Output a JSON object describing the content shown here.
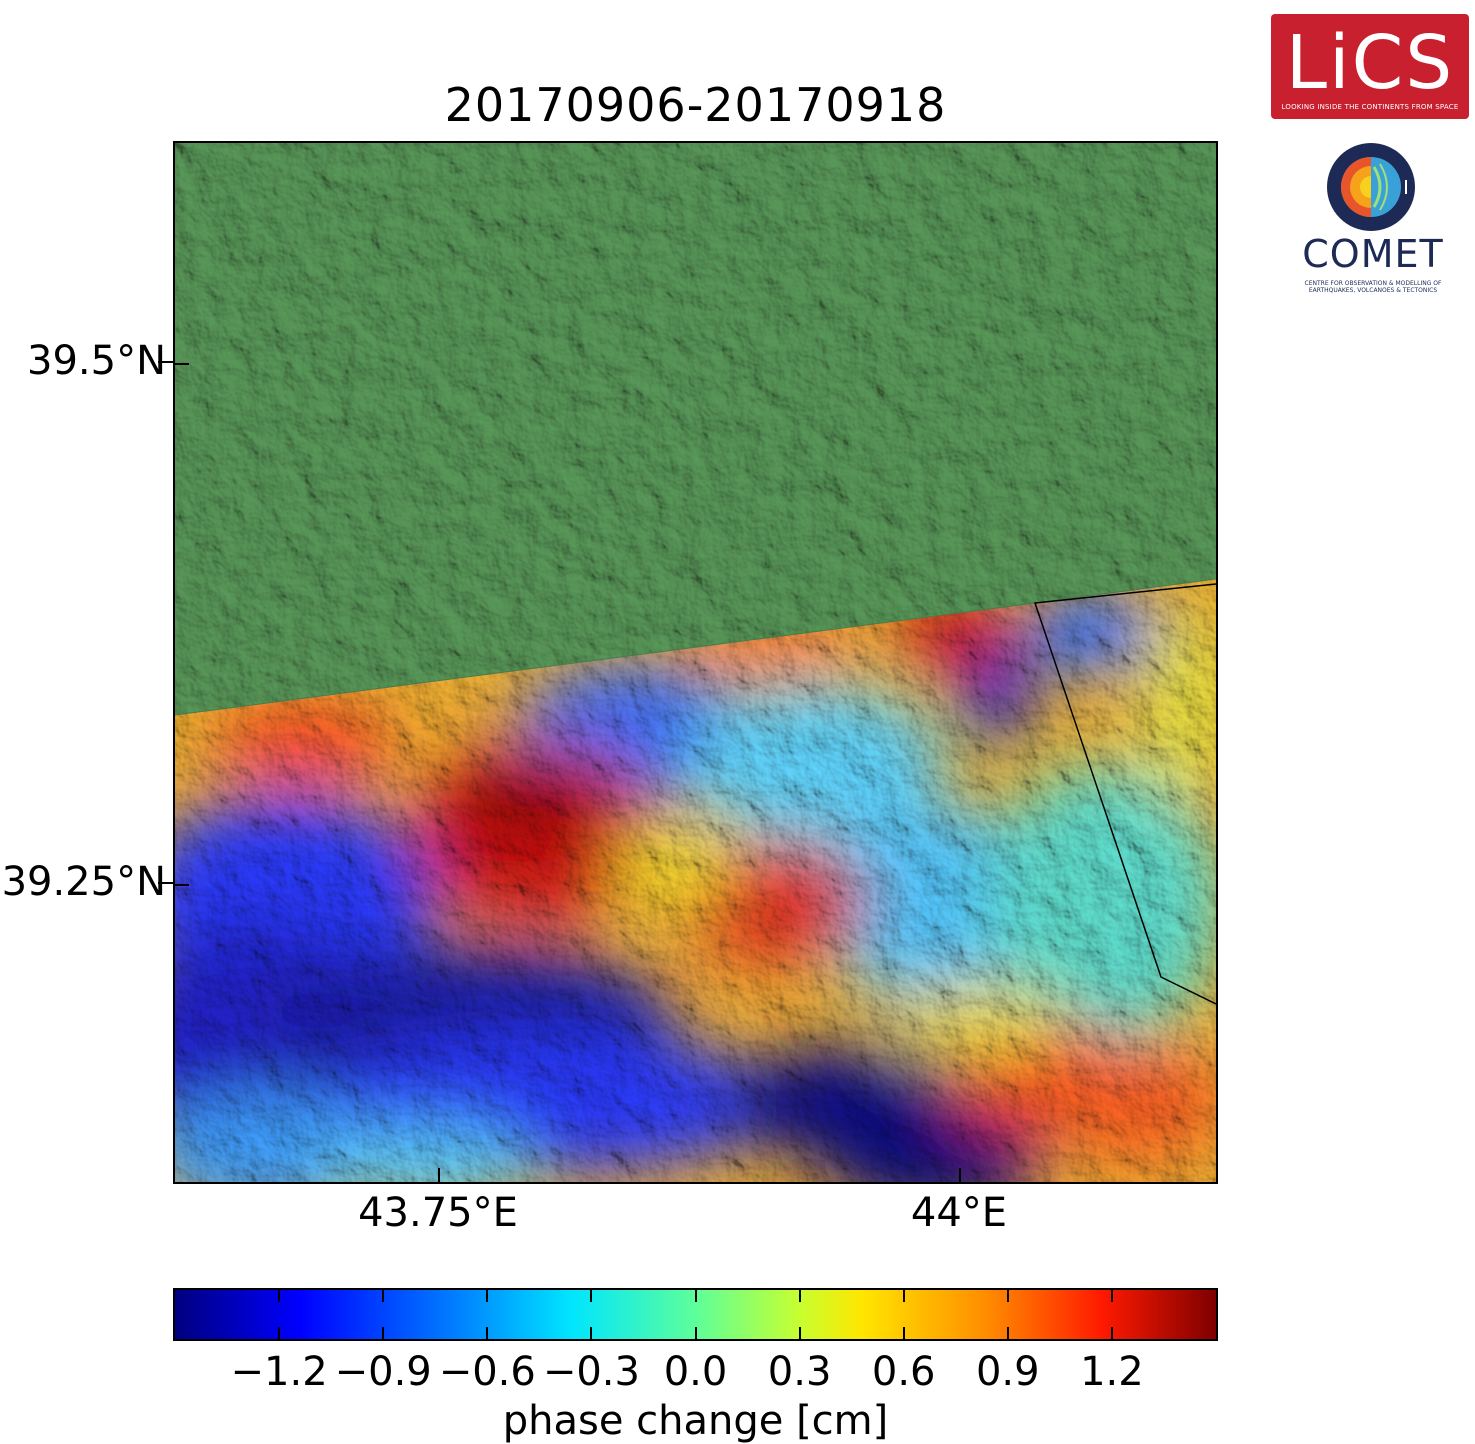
{
  "title": "20170906-20170918",
  "map": {
    "y_ticks": [
      {
        "value": 39.5,
        "label": "39.5°N"
      },
      {
        "value": 39.25,
        "label": "39.25°N"
      }
    ],
    "x_ticks": [
      {
        "value": 43.75,
        "label": "43.75°E"
      },
      {
        "value": 44.0,
        "label": "44°E"
      }
    ],
    "lon_range": [
      43.625,
      44.125
    ],
    "lat_range": [
      39.105,
      39.605
    ],
    "no_data_color": "#5a9a5a"
  },
  "colorbar": {
    "label": "phase change [cm]",
    "range": [
      -1.5,
      1.5
    ],
    "ticks": [
      "−1.2",
      "−0.9",
      "−0.6",
      "−0.3",
      "0.0",
      "0.3",
      "0.6",
      "0.9",
      "1.2"
    ],
    "tick_values": [
      -1.2,
      -0.9,
      -0.6,
      -0.3,
      0.0,
      0.3,
      0.6,
      0.9,
      1.2
    ],
    "colormap": "jet"
  },
  "logos": {
    "lics": {
      "name": "LiCS",
      "subtitle": "LOOKING INSIDE THE CONTINENTS FROM SPACE",
      "color": "#c8202f"
    },
    "comet": {
      "name": "COMET",
      "subtitle": "CENTRE FOR OBSERVATION & MODELLING OF EARTHQUAKES, VOLCANOES & TECTONICS",
      "color": "#1d2a55"
    }
  }
}
